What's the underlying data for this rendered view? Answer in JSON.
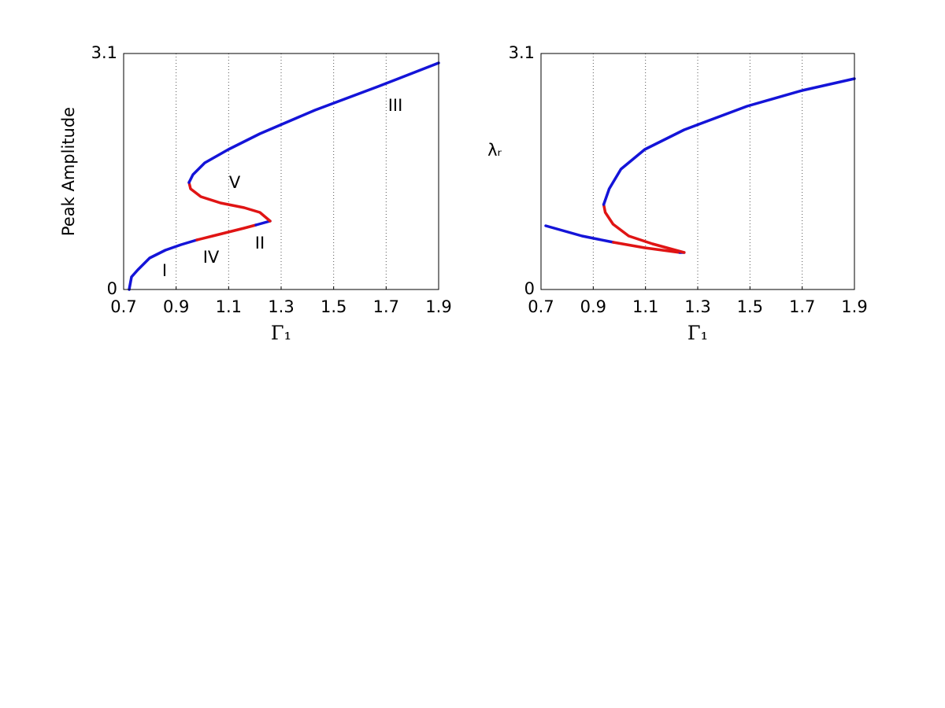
{
  "chart_data": [
    {
      "type": "line",
      "ylabel": "Peak Amplitude",
      "xlabel": "Γ₁",
      "xlim": [
        0.7,
        1.9
      ],
      "ylim": [
        0,
        3.1
      ],
      "xticks": [
        0.7,
        0.9,
        1.1,
        1.3,
        1.5,
        1.7,
        1.9
      ],
      "yticks": [
        0,
        3.1
      ],
      "grid": "x",
      "annotations": [
        "I",
        "II",
        "III",
        "IV",
        "V"
      ],
      "series": [
        {
          "color": "#1414d8",
          "x": [
            0.721,
            0.73,
            0.754,
            0.799,
            0.859,
            0.919,
            0.979
          ],
          "values": [
            0,
            0.165,
            0.258,
            0.413,
            0.517,
            0.589,
            0.651
          ]
        },
        {
          "color": "#e01414",
          "x": [
            0.979,
            1.039,
            1.099,
            1.159,
            1.204
          ],
          "values": [
            0.651,
            0.703,
            0.754,
            0.806,
            0.847
          ]
        },
        {
          "color": "#1414d8",
          "x": [
            1.204,
            1.258
          ],
          "values": [
            0.847,
            0.899
          ]
        },
        {
          "color": "#e01414",
          "x": [
            1.258,
            1.219,
            1.159,
            1.069,
            0.994,
            0.955,
            0.949
          ],
          "values": [
            0.899,
            1.013,
            1.075,
            1.137,
            1.219,
            1.323,
            1.405
          ]
        },
        {
          "color": "#1414d8",
          "x": [
            0.949,
            0.964,
            1.009,
            1.099,
            1.219,
            1.429,
            1.669,
            1.9
          ],
          "values": [
            1.405,
            1.509,
            1.664,
            1.839,
            2.046,
            2.356,
            2.666,
            2.976
          ]
        }
      ]
    },
    {
      "type": "line",
      "ylabel": "λᵣ",
      "xlabel": "Γ₁",
      "xlim": [
        0.7,
        1.9
      ],
      "ylim": [
        0,
        3.1
      ],
      "xticks": [
        0.7,
        0.9,
        1.1,
        1.3,
        1.5,
        1.7,
        1.9
      ],
      "yticks": [
        0,
        3.1
      ],
      "grid": "x",
      "series": [
        {
          "color": "#1414d8",
          "x": [
            0.718,
            0.857,
            0.977
          ],
          "values": [
            0.837,
            0.703,
            0.62
          ]
        },
        {
          "color": "#e01414",
          "x": [
            0.977,
            1.097,
            1.232
          ],
          "values": [
            0.62,
            0.548,
            0.486
          ]
        },
        {
          "color": "#1414d8",
          "x": [
            1.232,
            1.248
          ],
          "values": [
            0.486,
            0.486
          ]
        },
        {
          "color": "#e01414",
          "x": [
            1.248,
            1.127,
            1.036,
            0.976,
            0.946,
            0.94
          ],
          "values": [
            0.486,
            0.599,
            0.703,
            0.858,
            1.013,
            1.116
          ]
        },
        {
          "color": "#1414d8",
          "x": [
            0.94,
            0.961,
            1.006,
            1.097,
            1.248,
            1.489,
            1.7,
            1.9
          ],
          "values": [
            1.116,
            1.323,
            1.581,
            1.839,
            2.098,
            2.408,
            2.614,
            2.769
          ]
        }
      ]
    }
  ]
}
